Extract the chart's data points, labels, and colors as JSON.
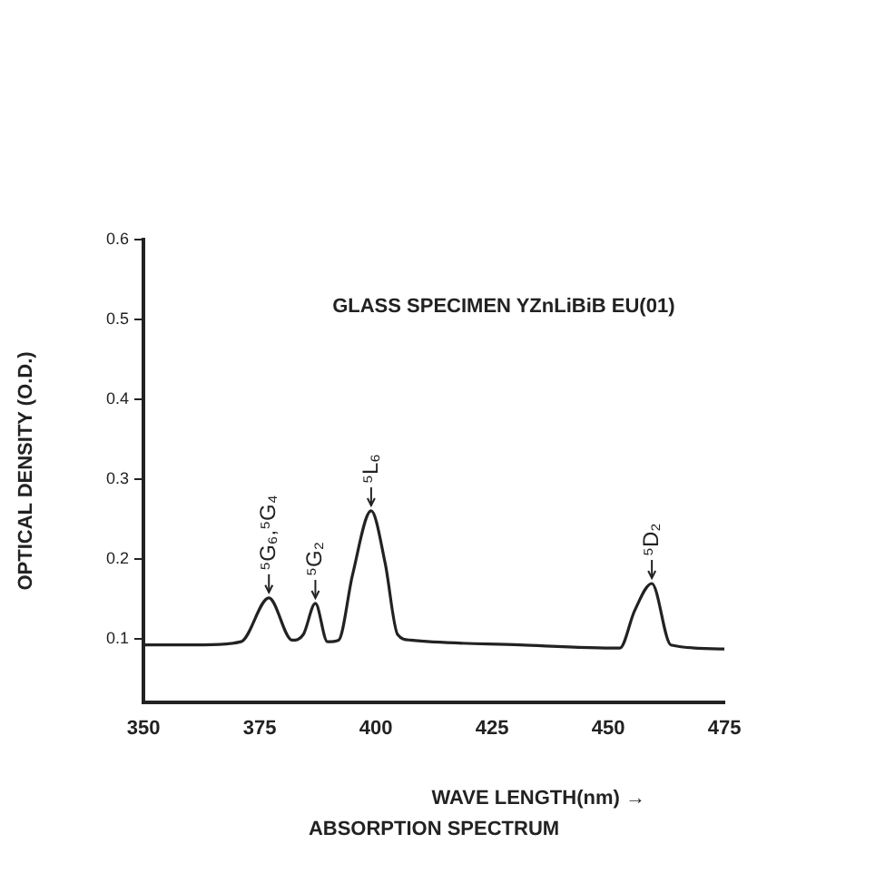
{
  "chart_data": {
    "type": "line",
    "title": "GLASS SPECIMEN YZnLiBiB EU(01)",
    "xlabel": "WAVE LENGTH(nm) →",
    "ylabel": "OPTICAL DENSITY (O.D.)",
    "annotations": [
      {
        "text": "⁵G₆,⁵G₄",
        "x": 377,
        "y": 0.151
      },
      {
        "text": "⁵G₂",
        "x": 387,
        "y": 0.144
      },
      {
        "text": "⁵L₆",
        "x": 399,
        "y": 0.26
      },
      {
        "text": "⁵D₂",
        "x": 459.4,
        "y": 0.169
      },
      "ABSORPTION SPECTRUM"
    ],
    "series": [
      {
        "color": "#222222",
        "x": [
          350,
          363,
          371,
          377,
          382,
          384.4,
          387,
          389.6,
          392,
          395,
          399,
          402,
          404.7,
          407.5,
          431,
          452.5,
          455.7,
          459.4,
          463.5,
          475
        ],
        "values": [
          0.092,
          0.092,
          0.096,
          0.151,
          0.098,
          0.105,
          0.144,
          0.096,
          0.098,
          0.18,
          0.26,
          0.195,
          0.105,
          0.098,
          0.092,
          0.088,
          0.135,
          0.169,
          0.092,
          0.087
        ]
      }
    ],
    "xlim": [
      350,
      475
    ],
    "xticks": [
      350,
      375,
      400,
      425,
      450,
      475
    ],
    "ylim": [
      0.02,
      0.6
    ],
    "yticks": [
      0.1,
      0.2,
      0.3,
      0.4,
      0.5,
      0.6
    ],
    "grid": false,
    "legend": false,
    "marker": "none",
    "line_style": "solid"
  }
}
